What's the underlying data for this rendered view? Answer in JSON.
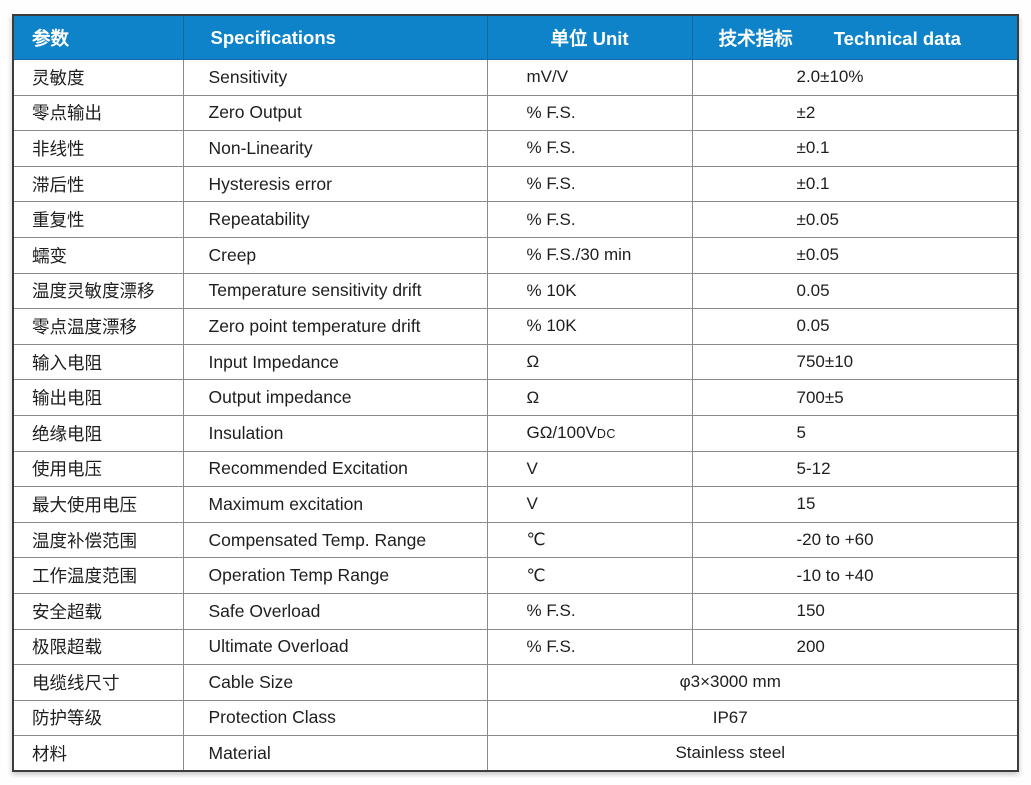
{
  "table": {
    "headers": {
      "col1": "参数",
      "col2": "Specifications",
      "col3": "单位 Unit",
      "col4_zh": "技术指标",
      "col4_en": "Technical data"
    },
    "rows": [
      {
        "param": "灵敏度",
        "spec": "Sensitivity",
        "unit": "mV/V",
        "value": "2.0±10%"
      },
      {
        "param": "零点输出",
        "spec": "Zero Output",
        "unit": "% F.S.",
        "value": "±2"
      },
      {
        "param": "非线性",
        "spec": "Non-Linearity",
        "unit": "% F.S.",
        "value": "±0.1"
      },
      {
        "param": "滞后性",
        "spec": "Hysteresis error",
        "unit": "% F.S.",
        "value": "±0.1"
      },
      {
        "param": "重复性",
        "spec": "Repeatability",
        "unit": "% F.S.",
        "value": "±0.05"
      },
      {
        "param": "蠕变",
        "spec": "Creep",
        "unit": "% F.S./30 min",
        "value": "±0.05"
      },
      {
        "param": "温度灵敏度漂移",
        "spec": "Temperature sensitivity drift",
        "unit": "% 10K",
        "value": "0.05"
      },
      {
        "param": "零点温度漂移",
        "spec": "Zero point temperature drift",
        "unit": "% 10K",
        "value": "0.05"
      },
      {
        "param": "输入电阻",
        "spec": "Input Impedance",
        "unit": "Ω",
        "value": "750±10"
      },
      {
        "param": "输出电阻",
        "spec": "Output impedance",
        "unit": "Ω",
        "value": "700±5"
      },
      {
        "param": "绝缘电阻",
        "spec": "Insulation",
        "unit": "GΩ/100V",
        "unit_small": "DC",
        "value": "5"
      },
      {
        "param": "使用电压",
        "spec": "Recommended Excitation",
        "unit": "V",
        "value": "5-12"
      },
      {
        "param": "最大使用电压",
        "spec": "Maximum excitation",
        "unit": "V",
        "value": "15"
      },
      {
        "param": "温度补偿范围",
        "spec": "Compensated Temp. Range",
        "unit": "℃",
        "value": "-20 to +60"
      },
      {
        "param": "工作温度范围",
        "spec": "Operation Temp Range",
        "unit": "℃",
        "value": "-10 to +40"
      },
      {
        "param": "安全超载",
        "spec": "Safe Overload",
        "unit": "% F.S.",
        "value": "150"
      },
      {
        "param": "极限超载",
        "spec": "Ultimate Overload",
        "unit": "% F.S.",
        "value": "200"
      },
      {
        "param": "电缆线尺寸",
        "spec": "Cable Size",
        "merged_value": "φ3×3000 mm"
      },
      {
        "param": "防护等级",
        "spec": "Protection Class",
        "merged_value": "IP67"
      },
      {
        "param": "材料",
        "spec": "Material",
        "merged_value": "Stainless steel"
      }
    ],
    "colors": {
      "header_bg": "#0e83c9",
      "header_text": "#ffffff",
      "header_separator": "#1568a3",
      "grid_line": "#8a8a8a",
      "outer_border": "#3c3c3c",
      "body_text": "#1e1e1e"
    }
  }
}
